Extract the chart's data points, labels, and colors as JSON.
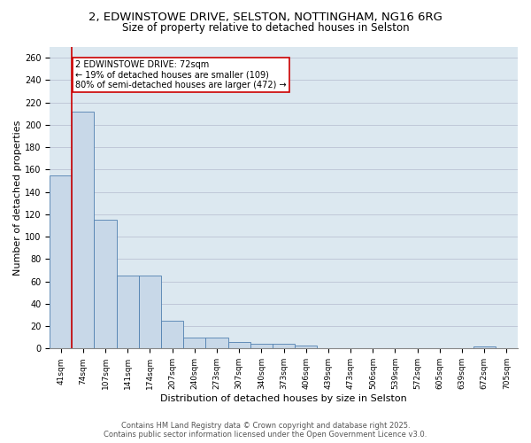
{
  "title_line1": "2, EDWINSTOWE DRIVE, SELSTON, NOTTINGHAM, NG16 6RG",
  "title_line2": "Size of property relative to detached houses in Selston",
  "xlabel": "Distribution of detached houses by size in Selston",
  "ylabel": "Number of detached properties",
  "categories": [
    "41sqm",
    "74sqm",
    "107sqm",
    "141sqm",
    "174sqm",
    "207sqm",
    "240sqm",
    "273sqm",
    "307sqm",
    "340sqm",
    "373sqm",
    "406sqm",
    "439sqm",
    "473sqm",
    "506sqm",
    "539sqm",
    "572sqm",
    "605sqm",
    "639sqm",
    "672sqm",
    "705sqm"
  ],
  "values": [
    155,
    212,
    115,
    65,
    65,
    25,
    10,
    10,
    6,
    4,
    4,
    3,
    0,
    0,
    0,
    0,
    0,
    0,
    0,
    2,
    0
  ],
  "bar_color": "#c8d8e8",
  "bar_edge_color": "#5080b0",
  "vline_x_pos": 0.5,
  "vline_color": "#cc0000",
  "annotation_text": "2 EDWINSTOWE DRIVE: 72sqm\n← 19% of detached houses are smaller (109)\n80% of semi-detached houses are larger (472) →",
  "annotation_box_color": "#cc0000",
  "ylim": [
    0,
    270
  ],
  "yticks": [
    0,
    20,
    40,
    60,
    80,
    100,
    120,
    140,
    160,
    180,
    200,
    220,
    240,
    260
  ],
  "grid_color": "#c0c8d8",
  "background_color": "#dce8f0",
  "footer_text": "Contains HM Land Registry data © Crown copyright and database right 2025.\nContains public sector information licensed under the Open Government Licence v3.0.",
  "title_fontsize": 9.5,
  "subtitle_fontsize": 8.5,
  "tick_fontsize": 6.5,
  "label_fontsize": 8,
  "annotation_fontsize": 7,
  "footer_fontsize": 6
}
